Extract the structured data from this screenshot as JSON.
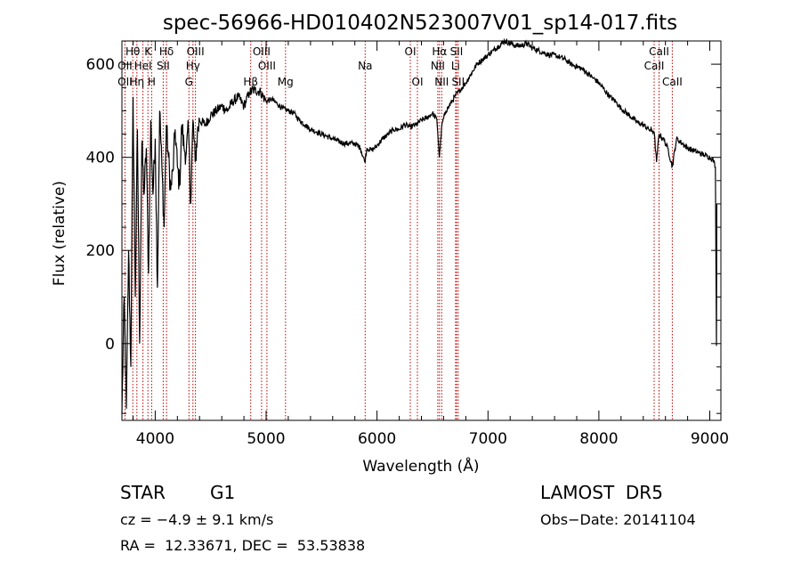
{
  "chart_data": {
    "type": "line",
    "title": "spec-56966-HD010402N523007V01_sp14-017.fits",
    "xlabel": "Wavelength (Å)",
    "ylabel": "Flux (relative)",
    "xlim": [
      3700,
      9100
    ],
    "ylim": [
      -165,
      650
    ],
    "x_ticks": [
      4000,
      5000,
      6000,
      7000,
      8000,
      9000
    ],
    "y_ticks": [
      0,
      200,
      400,
      600
    ],
    "grid": false,
    "series": [
      {
        "color": "#000000",
        "x": [
          3700,
          3720,
          3740,
          3760,
          3780,
          3800,
          3820,
          3840,
          3860,
          3880,
          3900,
          3920,
          3940,
          3960,
          3980,
          4000,
          4020,
          4040,
          4060,
          4080,
          4100,
          4120,
          4140,
          4160,
          4180,
          4200,
          4220,
          4240,
          4260,
          4280,
          4300,
          4320,
          4340,
          4360,
          4380,
          4400,
          4450,
          4500,
          4550,
          4600,
          4650,
          4700,
          4750,
          4800,
          4850,
          4900,
          4950,
          5000,
          5050,
          5100,
          5150,
          5200,
          5250,
          5300,
          5350,
          5400,
          5450,
          5500,
          5550,
          5600,
          5650,
          5700,
          5750,
          5800,
          5850,
          5890,
          5910,
          5950,
          6000,
          6050,
          6100,
          6150,
          6200,
          6250,
          6300,
          6350,
          6400,
          6450,
          6500,
          6540,
          6562,
          6585,
          6620,
          6650,
          6700,
          6750,
          6800,
          6850,
          6900,
          6950,
          7000,
          7050,
          7100,
          7150,
          7200,
          7250,
          7300,
          7350,
          7400,
          7450,
          7500,
          7550,
          7600,
          7650,
          7700,
          7750,
          7800,
          7850,
          7900,
          7950,
          8000,
          8050,
          8100,
          8150,
          8200,
          8250,
          8300,
          8350,
          8400,
          8450,
          8498,
          8520,
          8542,
          8580,
          8620,
          8662,
          8700,
          8750,
          8800,
          8850,
          8900,
          8950,
          9000,
          9030,
          9050,
          9060,
          9063
        ],
        "values": [
          -150,
          100,
          -140,
          200,
          -50,
          530,
          100,
          460,
          0,
          430,
          320,
          420,
          150,
          480,
          320,
          440,
          120,
          500,
          380,
          250,
          470,
          400,
          330,
          370,
          460,
          380,
          340,
          470,
          420,
          410,
          460,
          300,
          480,
          390,
          450,
          480,
          470,
          490,
          500,
          510,
          500,
          520,
          530,
          510,
          540,
          545,
          540,
          520,
          525,
          515,
          505,
          500,
          495,
          480,
          470,
          460,
          455,
          450,
          445,
          440,
          435,
          430,
          430,
          430,
          420,
          390,
          420,
          415,
          425,
          440,
          450,
          460,
          460,
          470,
          465,
          470,
          480,
          485,
          495,
          480,
          400,
          470,
          500,
          510,
          530,
          545,
          560,
          580,
          600,
          610,
          620,
          630,
          640,
          650,
          645,
          640,
          640,
          645,
          635,
          630,
          625,
          620,
          620,
          615,
          610,
          600,
          595,
          590,
          580,
          570,
          560,
          545,
          530,
          520,
          505,
          495,
          485,
          475,
          470,
          460,
          455,
          390,
          450,
          440,
          420,
          380,
          440,
          430,
          420,
          415,
          410,
          405,
          400,
          395,
          380,
          -5,
          300
        ],
        "values_unit": "relative flux"
      }
    ],
    "lines": [
      {
        "label": "Hθ",
        "wavelength": 3798,
        "row": 0
      },
      {
        "label": "K",
        "wavelength": 3934,
        "row": 0
      },
      {
        "label": "Hδ",
        "wavelength": 4102,
        "row": 0
      },
      {
        "label": "OIII",
        "wavelength": 4363,
        "row": 0
      },
      {
        "label": "OIII",
        "wavelength": 4959,
        "row": 0
      },
      {
        "label": "OI",
        "wavelength": 6300,
        "row": 0
      },
      {
        "label": "Hα",
        "wavelength": 6563,
        "row": 0
      },
      {
        "label": "SII",
        "wavelength": 6717,
        "row": 0
      },
      {
        "label": "CaII",
        "wavelength": 8542,
        "row": 0
      },
      {
        "label": "OII",
        "wavelength": 3727,
        "row": 1
      },
      {
        "label": "HeI",
        "wavelength": 3889,
        "row": 1
      },
      {
        "label": "SII",
        "wavelength": 4072,
        "row": 1
      },
      {
        "label": "Hγ",
        "wavelength": 4340,
        "row": 1
      },
      {
        "label": "OIII",
        "wavelength": 5007,
        "row": 1
      },
      {
        "label": "Na",
        "wavelength": 5893,
        "row": 1
      },
      {
        "label": "NII",
        "wavelength": 6548,
        "row": 1
      },
      {
        "label": "Li",
        "wavelength": 6708,
        "row": 1
      },
      {
        "label": "CaII",
        "wavelength": 8498,
        "row": 1
      },
      {
        "label": "OII",
        "wavelength": 3727,
        "row": 2
      },
      {
        "label": "Hη",
        "wavelength": 3835,
        "row": 2
      },
      {
        "label": "H",
        "wavelength": 3968,
        "row": 2
      },
      {
        "label": "G",
        "wavelength": 4304,
        "row": 2
      },
      {
        "label": "Hβ",
        "wavelength": 4861,
        "row": 2
      },
      {
        "label": "Mg",
        "wavelength": 5175,
        "row": 2
      },
      {
        "label": "OI",
        "wavelength": 6364,
        "row": 2
      },
      {
        "label": "NII",
        "wavelength": 6583,
        "row": 2
      },
      {
        "label": "SII",
        "wavelength": 6731,
        "row": 2
      },
      {
        "label": "CaII",
        "wavelength": 8662,
        "row": 2
      }
    ],
    "line_color": "#c00000"
  },
  "info": {
    "object_class": "STAR",
    "subclass": "G1",
    "survey": "LAMOST  DR5",
    "velocity": "cz = −4.9 ± 9.1 km/s",
    "obs_date": "Obs−Date: 20141104",
    "coords": "RA =  12.33671, DEC =  53.53838"
  }
}
